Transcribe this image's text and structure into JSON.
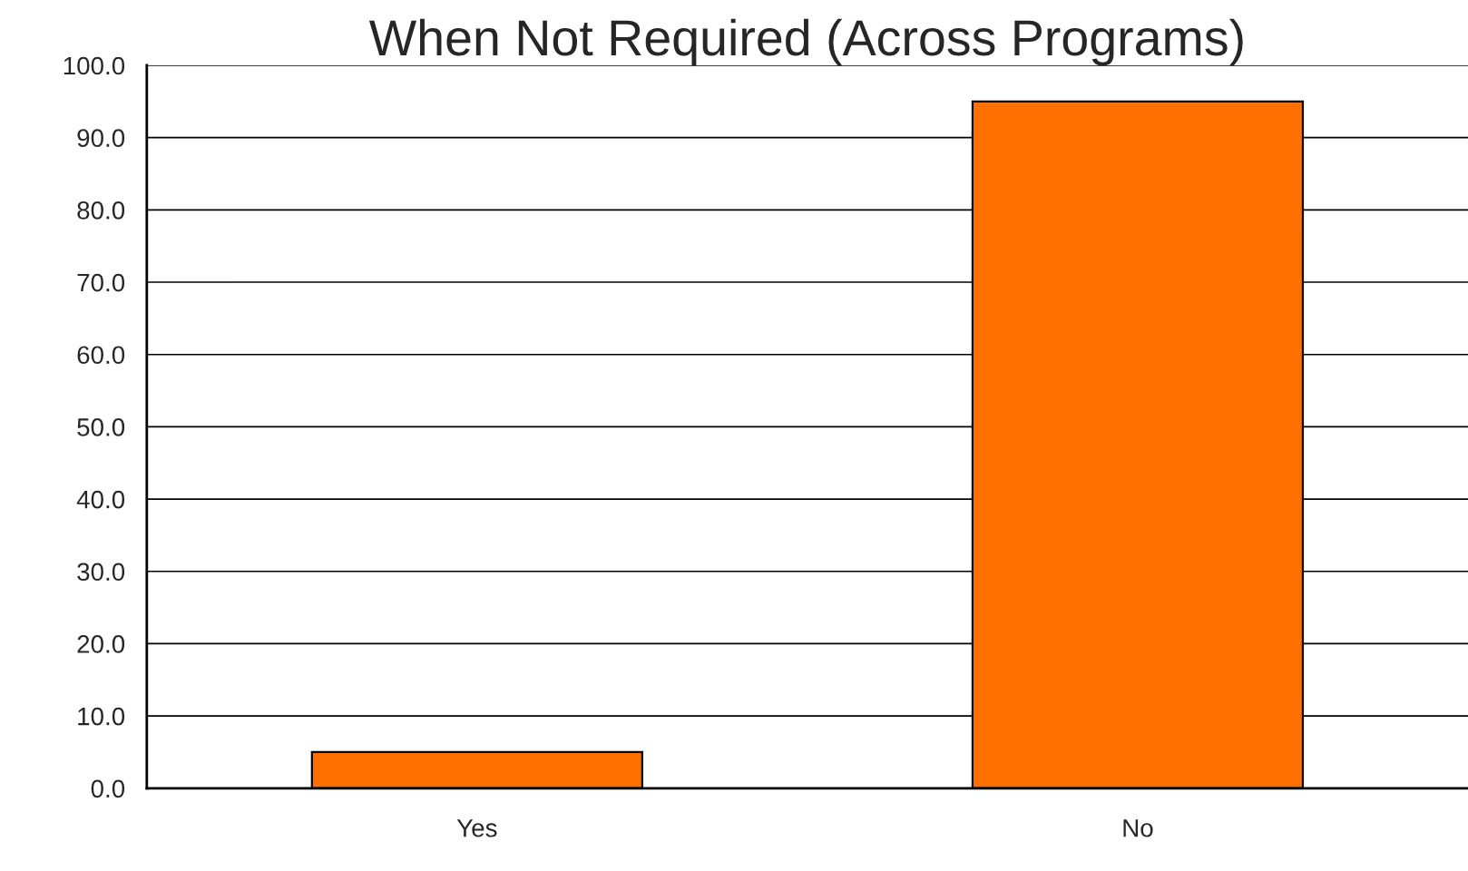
{
  "chart_data": {
    "type": "bar",
    "title": "When Not Required (Across Programs)",
    "categories": [
      "Yes",
      "No"
    ],
    "values": [
      5.0,
      95.0
    ],
    "color": "#ff7000",
    "ylim": [
      0,
      100
    ],
    "yticks": [
      {
        "value": 0,
        "label": "0.0"
      },
      {
        "value": 10,
        "label": "10.0"
      },
      {
        "value": 20,
        "label": "20.0"
      },
      {
        "value": 30,
        "label": "30.0"
      },
      {
        "value": 40,
        "label": "40.0"
      },
      {
        "value": 50,
        "label": "50.0"
      },
      {
        "value": 60,
        "label": "60.0"
      },
      {
        "value": 70,
        "label": "70.0"
      },
      {
        "value": 80,
        "label": "80.0"
      },
      {
        "value": 90,
        "label": "90.0"
      },
      {
        "value": 100,
        "label": "100.0"
      }
    ],
    "grid": "y"
  }
}
